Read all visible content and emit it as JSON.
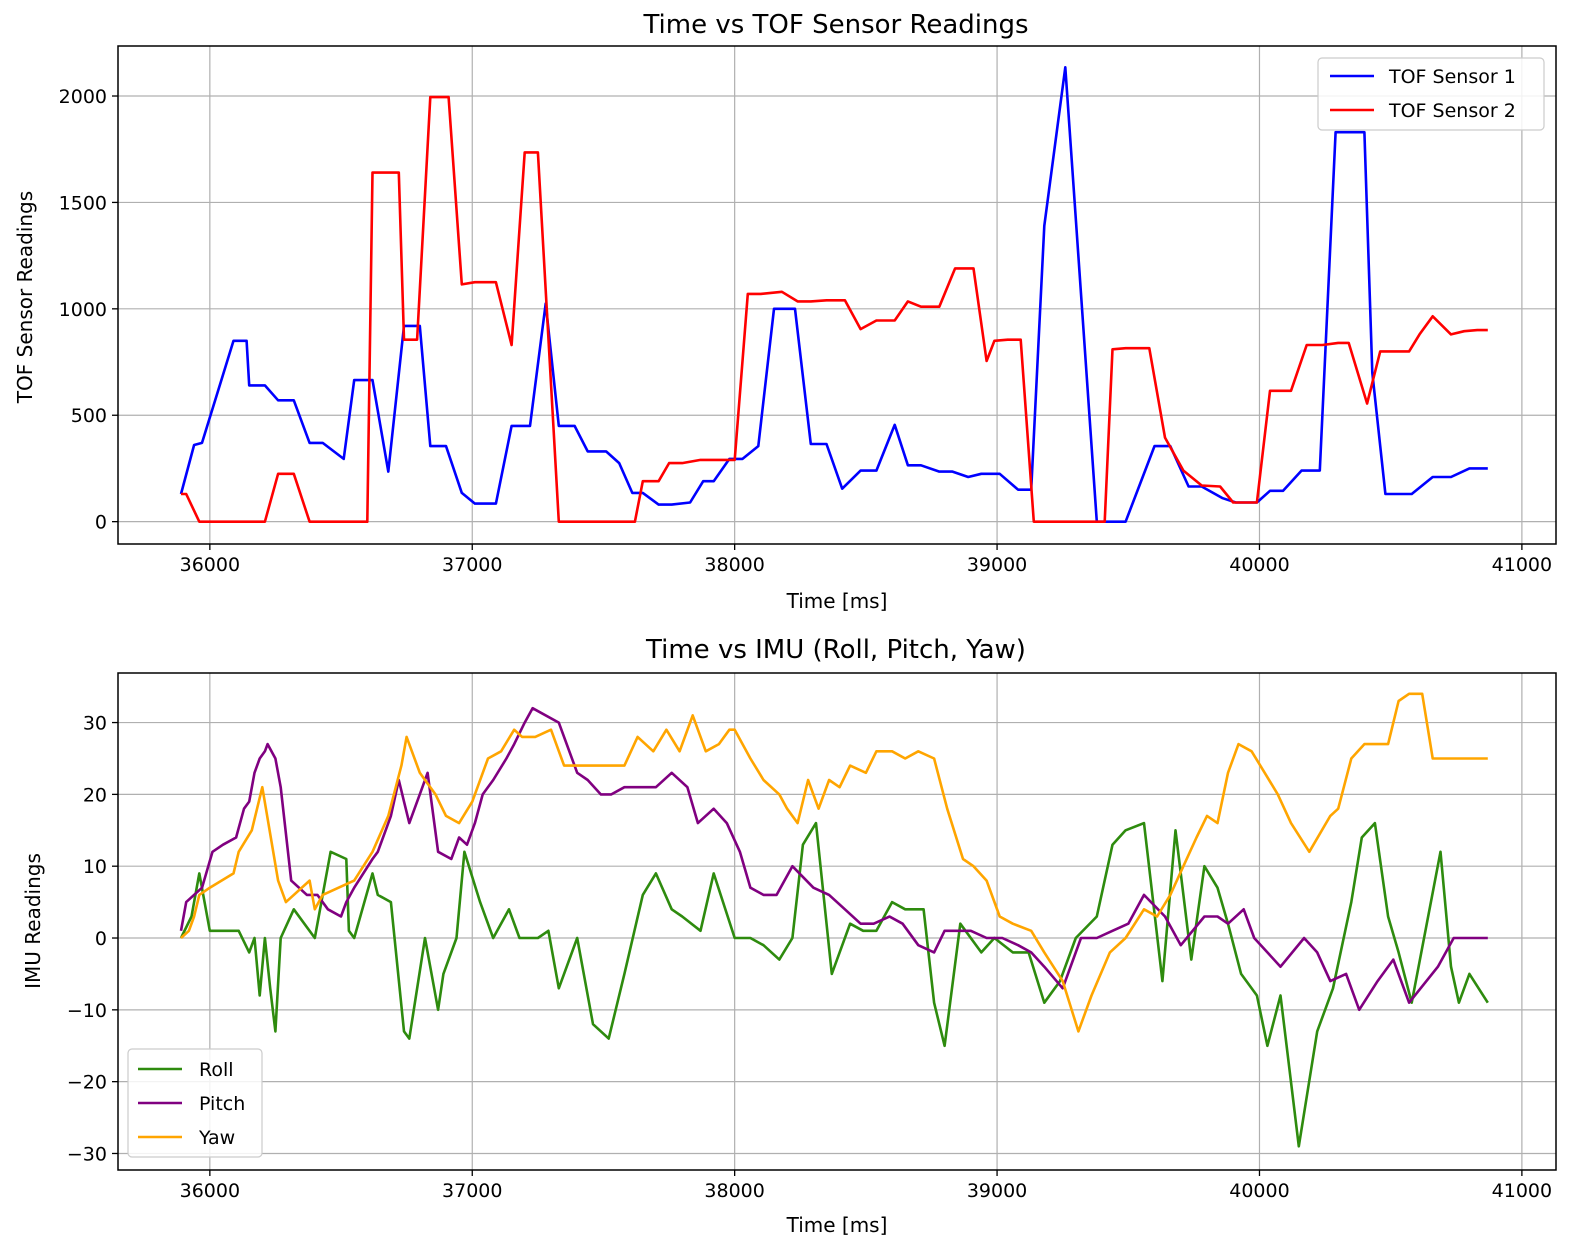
{
  "chart_data": [
    {
      "type": "line",
      "title": "Time vs TOF Sensor Readings",
      "xlabel": "Time [ms]",
      "ylabel": "TOF Sensor Readings",
      "xlim": [
        35650,
        41130
      ],
      "ylim": [
        -105,
        2235
      ],
      "xticks": [
        36000,
        37000,
        38000,
        39000,
        40000,
        41000
      ],
      "yticks": [
        0,
        500,
        1000,
        1500,
        2000
      ],
      "grid": true,
      "legend": "top-right",
      "series": [
        {
          "name": "TOF Sensor 1",
          "color": "#0000ff",
          "x": [
            35890,
            35940,
            35970,
            36090,
            36140,
            36150,
            36210,
            36260,
            36320,
            36380,
            36430,
            36510,
            36550,
            36620,
            36680,
            36740,
            36800,
            36840,
            36900,
            36960,
            37010,
            37090,
            37150,
            37220,
            37280,
            37330,
            37390,
            37440,
            37510,
            37560,
            37610,
            37650,
            37710,
            37760,
            37830,
            37880,
            37920,
            37980,
            38030,
            38090,
            38150,
            38230,
            38290,
            38350,
            38410,
            38480,
            38540,
            38610,
            38660,
            38710,
            38780,
            38830,
            38890,
            38940,
            39010,
            39080,
            39130,
            39180,
            39260,
            39380,
            39430,
            39490,
            39600,
            39660,
            39730,
            39780,
            39860,
            39910,
            39950,
            39990,
            40040,
            40090,
            40160,
            40230,
            40290,
            40340,
            40400,
            40430,
            40480,
            40520,
            40580,
            40660,
            40730,
            40800,
            40870
          ],
          "y": [
            130,
            360,
            370,
            850,
            850,
            640,
            640,
            570,
            570,
            370,
            370,
            295,
            665,
            665,
            235,
            920,
            920,
            355,
            355,
            135,
            85,
            85,
            450,
            450,
            1025,
            450,
            450,
            330,
            330,
            275,
            135,
            135,
            80,
            80,
            90,
            190,
            190,
            295,
            295,
            355,
            1000,
            1000,
            365,
            365,
            155,
            240,
            240,
            455,
            265,
            265,
            235,
            235,
            210,
            225,
            225,
            150,
            150,
            1390,
            2135,
            0,
            0,
            0,
            355,
            355,
            165,
            165,
            110,
            90,
            90,
            90,
            145,
            145,
            240,
            240,
            1830,
            1830,
            1830,
            700,
            130,
            130,
            130,
            210,
            210,
            250,
            250
          ]
        },
        {
          "name": "TOF Sensor 2",
          "color": "#ff0000",
          "x": [
            35890,
            35910,
            35960,
            36100,
            36210,
            36260,
            36320,
            36380,
            36450,
            36600,
            36620,
            36720,
            36740,
            36790,
            36840,
            36910,
            36960,
            37010,
            37090,
            37150,
            37200,
            37250,
            37330,
            37400,
            37500,
            37580,
            37620,
            37650,
            37710,
            37750,
            37800,
            37870,
            37910,
            37960,
            38000,
            38050,
            38100,
            38180,
            38240,
            38290,
            38350,
            38420,
            38480,
            38540,
            38610,
            38660,
            38710,
            38780,
            38840,
            38910,
            38960,
            38990,
            39040,
            39090,
            39140,
            39200,
            39260,
            39370,
            39410,
            39440,
            39490,
            39580,
            39640,
            39710,
            39780,
            39850,
            39900,
            39950,
            39990,
            40040,
            40080,
            40120,
            40180,
            40240,
            40300,
            40340,
            40410,
            40460,
            40510,
            40570,
            40610,
            40660,
            40730,
            40780,
            40830,
            40870
          ],
          "y": [
            130,
            130,
            0,
            0,
            0,
            225,
            225,
            0,
            0,
            0,
            1640,
            1640,
            855,
            855,
            1995,
            1995,
            1115,
            1125,
            1125,
            830,
            1735,
            1735,
            0,
            0,
            0,
            0,
            0,
            190,
            190,
            275,
            275,
            290,
            290,
            290,
            290,
            1070,
            1070,
            1080,
            1035,
            1035,
            1040,
            1040,
            905,
            945,
            945,
            1035,
            1010,
            1010,
            1190,
            1190,
            755,
            850,
            855,
            855,
            0,
            0,
            0,
            0,
            0,
            810,
            815,
            815,
            395,
            240,
            170,
            165,
            90,
            90,
            90,
            615,
            615,
            615,
            830,
            830,
            840,
            840,
            555,
            800,
            800,
            800,
            880,
            965,
            880,
            895,
            900,
            900
          ]
        }
      ]
    },
    {
      "type": "line",
      "title": "Time vs IMU (Roll, Pitch, Yaw)",
      "xlabel": "Time [ms]",
      "ylabel": "IMU Readings",
      "xlim": [
        35650,
        41130
      ],
      "ylim": [
        -32.3,
        36.9
      ],
      "xticks": [
        36000,
        37000,
        38000,
        39000,
        40000,
        41000
      ],
      "yticks": [
        -30,
        -20,
        -10,
        0,
        10,
        20,
        30
      ],
      "grid": true,
      "legend": "bottom-left",
      "series": [
        {
          "name": "Roll",
          "color": "#2e8b0e",
          "x": [
            35890,
            35930,
            35960,
            36000,
            36050,
            36080,
            36110,
            36150,
            36170,
            36190,
            36210,
            36230,
            36250,
            36270,
            36320,
            36400,
            36460,
            36520,
            36530,
            36550,
            36620,
            36640,
            36690,
            36740,
            36760,
            36820,
            36870,
            36890,
            36940,
            36970,
            37030,
            37080,
            37140,
            37180,
            37210,
            37250,
            37290,
            37330,
            37400,
            37460,
            37520,
            37580,
            37650,
            37700,
            37760,
            37800,
            37870,
            37920,
            38000,
            38060,
            38110,
            38170,
            38220,
            38260,
            38310,
            38370,
            38440,
            38490,
            38540,
            38600,
            38650,
            38720,
            38760,
            38800,
            38860,
            38940,
            38990,
            39060,
            39120,
            39180,
            39240,
            39300,
            39380,
            39440,
            39490,
            39560,
            39630,
            39680,
            39740,
            39790,
            39840,
            39880,
            39930,
            39990,
            40030,
            40080,
            40150,
            40220,
            40280,
            40350,
            40390,
            40440,
            40490,
            40530,
            40580,
            40690,
            40730,
            40760,
            40800,
            40870
          ],
          "y": [
            0,
            3,
            9,
            1,
            1,
            1,
            1,
            -2,
            0,
            -8,
            0,
            -7,
            -13,
            0,
            4,
            0,
            12,
            11,
            1,
            0,
            9,
            6,
            5,
            -13,
            -14,
            0,
            -10,
            -5,
            0,
            12,
            5,
            0,
            4,
            0,
            0,
            0,
            1,
            -7,
            0,
            -12,
            -14,
            -5,
            6,
            9,
            4,
            3,
            1,
            9,
            0,
            0,
            -1,
            -3,
            0,
            13,
            16,
            -5,
            2,
            1,
            1,
            5,
            4,
            4,
            -9,
            -15,
            2,
            -2,
            0,
            -2,
            -2,
            -9,
            -6,
            0,
            3,
            13,
            15,
            16,
            -6,
            15,
            -3,
            10,
            7,
            2,
            -5,
            -8,
            -15,
            -8,
            -29,
            -13,
            -7,
            5,
            14,
            16,
            3,
            -2,
            -9,
            12,
            -4,
            -9,
            -5,
            -9
          ]
        },
        {
          "name": "Pitch",
          "color": "#800080",
          "x": [
            35890,
            35910,
            35970,
            36010,
            36050,
            36100,
            36130,
            36150,
            36170,
            36190,
            36210,
            36220,
            36250,
            36270,
            36310,
            36370,
            36410,
            36450,
            36500,
            36520,
            36550,
            36620,
            36640,
            36690,
            36720,
            36740,
            36760,
            36810,
            36830,
            36870,
            36920,
            36950,
            36980,
            37010,
            37040,
            37080,
            37130,
            37160,
            37200,
            37230,
            37330,
            37400,
            37440,
            37490,
            37530,
            37580,
            37650,
            37700,
            37760,
            37820,
            37860,
            37920,
            37970,
            38020,
            38060,
            38110,
            38160,
            38220,
            38300,
            38360,
            38420,
            38480,
            38530,
            38590,
            38640,
            38700,
            38760,
            38800,
            38860,
            38900,
            38960,
            39020,
            39080,
            39130,
            39180,
            39250,
            39320,
            39380,
            39440,
            39500,
            39560,
            39640,
            39700,
            39790,
            39840,
            39880,
            39940,
            39980,
            40030,
            40080,
            40170,
            40220,
            40270,
            40330,
            40380,
            40450,
            40510,
            40570,
            40680,
            40740,
            40790,
            40870
          ],
          "y": [
            1,
            5,
            7,
            12,
            13,
            14,
            18,
            19,
            23,
            25,
            26,
            27,
            25,
            21,
            8,
            6,
            6,
            4,
            3,
            5,
            7,
            11,
            12,
            17,
            22,
            19,
            16,
            21,
            23,
            12,
            11,
            14,
            13,
            16,
            20,
            22,
            25,
            27,
            30,
            32,
            30,
            23,
            22,
            20,
            20,
            21,
            21,
            21,
            23,
            21,
            16,
            18,
            16,
            12,
            7,
            6,
            6,
            10,
            7,
            6,
            4,
            2,
            2,
            3,
            2,
            -1,
            -2,
            1,
            1,
            1,
            0,
            0,
            -1,
            -2,
            -4,
            -7,
            0,
            0,
            1,
            2,
            6,
            3,
            -1,
            3,
            3,
            2,
            4,
            0,
            -2,
            -4,
            0,
            -2,
            -6,
            -5,
            -10,
            -6,
            -3,
            -9,
            -4,
            0,
            0,
            0
          ]
        },
        {
          "name": "Yaw",
          "color": "#ffa500",
          "x": [
            35890,
            35920,
            35940,
            35960,
            36000,
            36090,
            36110,
            36160,
            36200,
            36260,
            36290,
            36320,
            36380,
            36400,
            36430,
            36550,
            36620,
            36680,
            36730,
            36750,
            36800,
            36820,
            36860,
            36900,
            36950,
            37000,
            37060,
            37110,
            37160,
            37190,
            37240,
            37300,
            37350,
            37420,
            37520,
            37580,
            37630,
            37690,
            37740,
            37790,
            37840,
            37890,
            37940,
            37980,
            38000,
            38060,
            38110,
            38170,
            38200,
            38240,
            38280,
            38320,
            38360,
            38400,
            38440,
            38500,
            38540,
            38600,
            38650,
            38700,
            38760,
            38810,
            38870,
            38910,
            38960,
            39010,
            39060,
            39130,
            39180,
            39250,
            39310,
            39360,
            39430,
            39490,
            39560,
            39610,
            39660,
            39710,
            39760,
            39800,
            39840,
            39880,
            39920,
            39970,
            40020,
            40070,
            40120,
            40190,
            40270,
            40300,
            40350,
            40400,
            40450,
            40490,
            40530,
            40570,
            40620,
            40660,
            40710,
            40750,
            40830,
            40870
          ],
          "y": [
            0,
            1,
            3,
            6,
            7,
            9,
            12,
            15,
            21,
            8,
            5,
            6,
            8,
            4,
            6,
            8,
            12,
            17,
            24,
            28,
            23,
            22,
            20,
            17,
            16,
            19,
            25,
            26,
            29,
            28,
            28,
            29,
            24,
            24,
            24,
            24,
            28,
            26,
            29,
            26,
            31,
            26,
            27,
            29,
            29,
            25,
            22,
            20,
            18,
            16,
            22,
            18,
            22,
            21,
            24,
            23,
            26,
            26,
            25,
            26,
            25,
            18,
            11,
            10,
            8,
            3,
            2,
            1,
            -2,
            -6,
            -13,
            -8,
            -2,
            0,
            4,
            3,
            6,
            10,
            14,
            17,
            16,
            23,
            27,
            26,
            23,
            20,
            16,
            12,
            17,
            18,
            25,
            27,
            27,
            27,
            33,
            34,
            34,
            25,
            25,
            25,
            25,
            25
          ]
        }
      ]
    }
  ]
}
